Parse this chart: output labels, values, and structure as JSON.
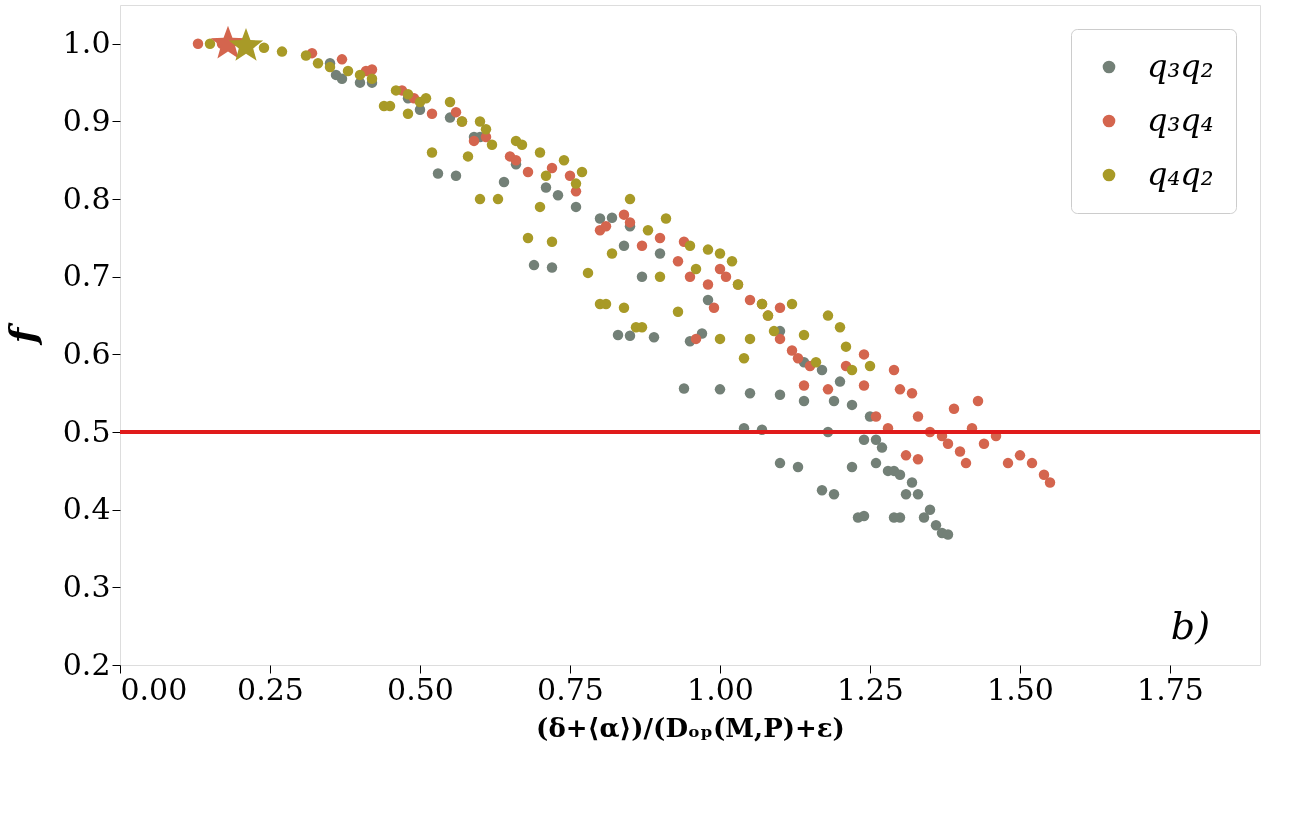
{
  "chart_data": {
    "type": "scatter",
    "xlabel": "(δ+⟨α⟩)/(Dₒₚ(M,P)+ε)",
    "ylabel": "f",
    "xlim": [
      0,
      1.9
    ],
    "ylim": [
      0.2,
      1.05
    ],
    "xticks": [
      {
        "value": 0,
        "label": "0.00"
      },
      {
        "value": 0.25,
        "label": "0.25"
      },
      {
        "value": 0.5,
        "label": "0.50"
      },
      {
        "value": 0.75,
        "label": "0.75"
      },
      {
        "value": 1,
        "label": "1.00"
      },
      {
        "value": 1.25,
        "label": "1.25"
      },
      {
        "value": 1.5,
        "label": "1.50"
      },
      {
        "value": 1.75,
        "label": "1.75"
      }
    ],
    "yticks": [
      {
        "value": 0.2,
        "label": "0.2"
      },
      {
        "value": 0.3,
        "label": "0.3"
      },
      {
        "value": 0.4,
        "label": "0.4"
      },
      {
        "value": 0.5,
        "label": "0.5"
      },
      {
        "value": 0.6,
        "label": "0.6"
      },
      {
        "value": 0.7,
        "label": "0.7"
      },
      {
        "value": 0.8,
        "label": "0.8"
      },
      {
        "value": 0.9,
        "label": "0.9"
      },
      {
        "value": 1,
        "label": "1.0"
      }
    ],
    "grid": false,
    "legend": "top right",
    "ref_lines": [
      {
        "axis": "y",
        "value": 0.5,
        "color": "#e01b1b"
      }
    ],
    "annotations": [
      "b)"
    ],
    "series": [
      {
        "name": "q₃q₂",
        "color": "#738077",
        "marker": "circle",
        "x": [
          0.35,
          0.36,
          0.37,
          0.4,
          0.42,
          0.48,
          0.5,
          0.53,
          0.56,
          0.55,
          0.59,
          0.6,
          0.64,
          0.66,
          0.69,
          0.72,
          0.71,
          0.73,
          0.76,
          0.8,
          0.82,
          0.83,
          0.85,
          0.84,
          0.85,
          0.89,
          0.87,
          0.9,
          0.94,
          0.95,
          0.97,
          0.98,
          1.0,
          1.04,
          1.07,
          1.1,
          1.13,
          1.05,
          1.1,
          1.1,
          1.14,
          1.14,
          1.17,
          1.17,
          1.19,
          1.2,
          1.22,
          1.23,
          1.24,
          1.22,
          1.18,
          1.19,
          1.25,
          1.26,
          1.27,
          1.28,
          1.29,
          1.3,
          1.3,
          1.32,
          1.33,
          1.34,
          1.31,
          1.35,
          1.36,
          1.37,
          1.38,
          1.24,
          1.26,
          1.29
        ],
        "values": [
          0.975,
          0.96,
          0.955,
          0.95,
          0.95,
          0.93,
          0.915,
          0.833,
          0.83,
          0.905,
          0.88,
          0.88,
          0.822,
          0.845,
          0.715,
          0.712,
          0.815,
          0.805,
          0.79,
          0.775,
          0.776,
          0.625,
          0.624,
          0.74,
          0.765,
          0.622,
          0.7,
          0.73,
          0.556,
          0.617,
          0.627,
          0.67,
          0.555,
          0.505,
          0.503,
          0.46,
          0.455,
          0.55,
          0.548,
          0.63,
          0.59,
          0.54,
          0.58,
          0.425,
          0.42,
          0.565,
          0.535,
          0.39,
          0.392,
          0.455,
          0.5,
          0.54,
          0.52,
          0.49,
          0.48,
          0.45,
          0.45,
          0.445,
          0.39,
          0.435,
          0.42,
          0.39,
          0.42,
          0.4,
          0.38,
          0.37,
          0.368,
          0.49,
          0.46,
          0.39
        ]
      },
      {
        "name": "q₃q₄",
        "color": "#d4654e",
        "marker": "circle",
        "x": [
          0.13,
          0.17,
          0.32,
          0.37,
          0.41,
          0.42,
          0.47,
          0.49,
          0.52,
          0.56,
          0.57,
          0.59,
          0.61,
          0.65,
          0.66,
          0.68,
          0.72,
          0.75,
          0.76,
          0.8,
          0.81,
          0.84,
          0.85,
          0.87,
          0.9,
          0.93,
          0.94,
          0.95,
          0.98,
          1.0,
          1.01,
          0.96,
          0.99,
          1.03,
          1.05,
          1.07,
          1.08,
          1.1,
          1.12,
          1.13,
          1.15,
          1.14,
          1.18,
          1.21,
          1.24,
          1.24,
          1.26,
          1.28,
          1.29,
          1.3,
          1.32,
          1.33,
          1.35,
          1.37,
          1.38,
          1.4,
          1.41,
          1.42,
          1.44,
          1.46,
          1.48,
          1.5,
          1.52,
          1.54,
          1.55,
          1.31,
          1.33,
          1.39,
          1.43,
          1.1
        ],
        "values": [
          1.0,
          1.0,
          0.988,
          0.98,
          0.965,
          0.967,
          0.94,
          0.93,
          0.91,
          0.912,
          0.9,
          0.875,
          0.88,
          0.855,
          0.85,
          0.835,
          0.84,
          0.83,
          0.81,
          0.76,
          0.765,
          0.78,
          0.77,
          0.74,
          0.75,
          0.72,
          0.745,
          0.7,
          0.69,
          0.71,
          0.7,
          0.62,
          0.66,
          0.69,
          0.67,
          0.665,
          0.65,
          0.62,
          0.605,
          0.595,
          0.585,
          0.56,
          0.555,
          0.585,
          0.6,
          0.56,
          0.52,
          0.505,
          0.58,
          0.555,
          0.55,
          0.52,
          0.5,
          0.495,
          0.485,
          0.475,
          0.46,
          0.505,
          0.485,
          0.495,
          0.46,
          0.47,
          0.46,
          0.445,
          0.435,
          0.47,
          0.465,
          0.53,
          0.54,
          0.66
        ]
      },
      {
        "name": "q₄q₂",
        "color": "#a89a27",
        "marker": "circle",
        "x": [
          0.15,
          0.24,
          0.27,
          0.31,
          0.33,
          0.35,
          0.38,
          0.4,
          0.42,
          0.44,
          0.45,
          0.46,
          0.48,
          0.5,
          0.51,
          0.48,
          0.52,
          0.55,
          0.57,
          0.58,
          0.6,
          0.61,
          0.6,
          0.62,
          0.63,
          0.66,
          0.67,
          0.68,
          0.7,
          0.71,
          0.7,
          0.72,
          0.74,
          0.76,
          0.77,
          0.78,
          0.8,
          0.81,
          0.82,
          0.84,
          0.85,
          0.86,
          0.87,
          0.88,
          0.9,
          0.91,
          0.93,
          0.95,
          0.96,
          0.98,
          1.0,
          1.02,
          1.03,
          1.05,
          1.07,
          1.08,
          1.09,
          1.12,
          1.14,
          1.16,
          1.18,
          1.2,
          1.21,
          1.22,
          1.25,
          1.0,
          1.04
        ],
        "values": [
          1.0,
          0.995,
          0.99,
          0.985,
          0.975,
          0.97,
          0.965,
          0.96,
          0.955,
          0.92,
          0.92,
          0.94,
          0.935,
          0.925,
          0.93,
          0.91,
          0.86,
          0.925,
          0.9,
          0.855,
          0.9,
          0.89,
          0.8,
          0.87,
          0.8,
          0.875,
          0.87,
          0.75,
          0.86,
          0.83,
          0.79,
          0.745,
          0.85,
          0.82,
          0.835,
          0.705,
          0.665,
          0.665,
          0.73,
          0.66,
          0.8,
          0.635,
          0.635,
          0.76,
          0.7,
          0.775,
          0.655,
          0.74,
          0.71,
          0.735,
          0.73,
          0.72,
          0.69,
          0.62,
          0.665,
          0.65,
          0.63,
          0.665,
          0.625,
          0.59,
          0.65,
          0.635,
          0.61,
          0.58,
          0.585,
          0.62,
          0.595
        ]
      },
      {
        "color": "#d4654e",
        "marker": "star",
        "x": [
          0.18
        ],
        "values": [
          1.0
        ]
      },
      {
        "color": "#a89a27",
        "marker": "star",
        "x": [
          0.21
        ],
        "values": [
          0.997
        ]
      }
    ]
  }
}
